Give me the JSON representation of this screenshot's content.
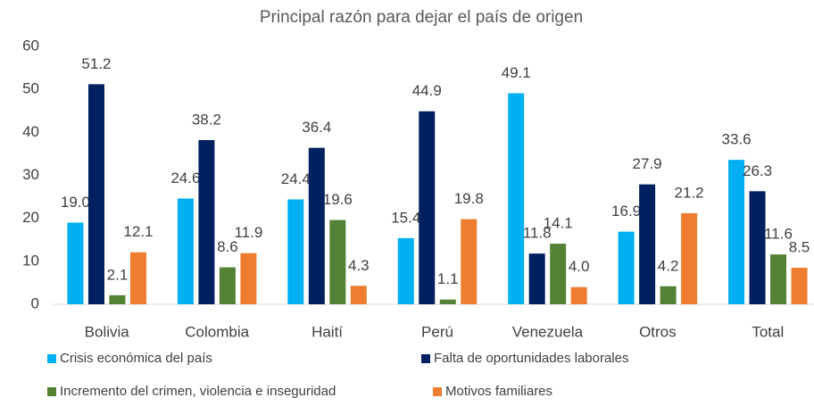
{
  "chart_data": {
    "type": "bar",
    "title": "Principal razón para dejar el país de origen",
    "categories": [
      "Bolivia",
      "Colombia",
      "Haití",
      "Perú",
      "Venezuela",
      "Otros",
      "Total"
    ],
    "series": [
      {
        "name": "Crisis económica del país",
        "color": "#00b0f0",
        "values": [
          19.0,
          24.6,
          24.4,
          15.4,
          49.1,
          16.9,
          33.6
        ],
        "value_labels": [
          "19.0",
          "24.6",
          "24.4",
          "15.4",
          "49.1",
          "16.9",
          "33.6"
        ]
      },
      {
        "name": "Falta de oportunidades laborales",
        "color": "#002060",
        "values": [
          51.2,
          38.2,
          36.4,
          44.9,
          11.8,
          27.9,
          26.3
        ],
        "value_labels": [
          "51.2",
          "38.2",
          "36.4",
          "44.9",
          "11.8",
          "27.9",
          "26.3"
        ]
      },
      {
        "name": "Incremento del crimen, violencia e inseguridad",
        "color": "#548235",
        "values": [
          2.1,
          8.6,
          19.6,
          1.1,
          14.1,
          4.2,
          11.6
        ],
        "value_labels": [
          "2.1",
          "8.6",
          "19.6",
          "1.1",
          "14.1",
          "4.2",
          "11.6"
        ]
      },
      {
        "name": "Motivos familiares",
        "color": "#ed7d31",
        "values": [
          12.1,
          11.9,
          4.3,
          19.8,
          4.0,
          21.2,
          8.5
        ],
        "value_labels": [
          "12.1",
          "11.9",
          "4.3",
          "19.8",
          "4.0",
          "21.2",
          "8.5"
        ]
      }
    ],
    "ylim": [
      0,
      60
    ],
    "yticks": [
      0,
      10,
      20,
      30,
      40,
      50,
      60
    ],
    "grid": false,
    "legend": "bottom"
  }
}
